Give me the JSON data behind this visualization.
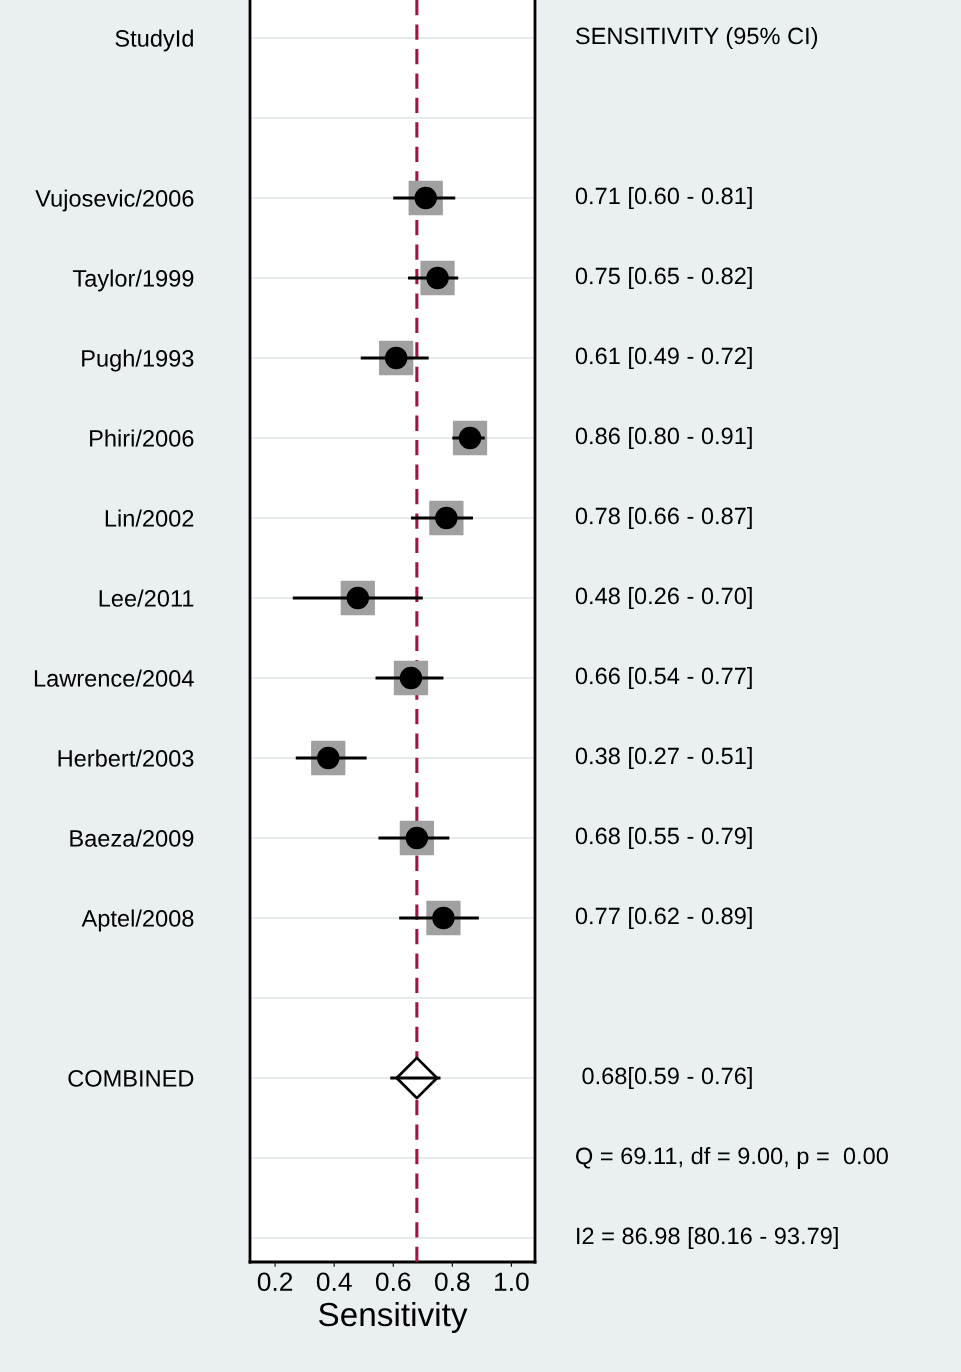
{
  "chart_data": {
    "type": "scatter",
    "orientation": "horizontal",
    "xlabel": "Sensitivity",
    "categories": [
      "StudyId",
      null,
      "Vujosevic/2006",
      "Taylor/1999",
      "Pugh/1993",
      "Phiri/2006",
      "Lin/2002",
      "Lee/2011",
      "Lawrence/2004",
      "Herbert/2003",
      "Baeza/2009",
      "Aptel/2008",
      null,
      "COMBINED",
      null,
      null
    ],
    "series": [
      {
        "color": "#000000",
        "marker": "circle",
        "values": [
          null,
          null,
          0.71,
          0.75,
          0.61,
          0.86,
          0.78,
          0.48,
          0.66,
          0.38,
          0.68,
          0.77,
          null,
          null,
          null,
          null
        ],
        "errors": [
          null,
          null,
          [
            0.6,
            0.81
          ],
          [
            0.65,
            0.82
          ],
          [
            0.49,
            0.72
          ],
          [
            0.8,
            0.91
          ],
          [
            0.66,
            0.87
          ],
          [
            0.26,
            0.7
          ],
          [
            0.54,
            0.77
          ],
          [
            0.27,
            0.51
          ],
          [
            0.55,
            0.79
          ],
          [
            0.62,
            0.89
          ],
          null,
          null,
          null,
          null
        ],
        "value_labels": [
          "SENSITIVITY (95% CI)",
          null,
          "0.71 [0.60 - 0.81]",
          "0.75 [0.65 - 0.82]",
          "0.61 [0.49 - 0.72]",
          "0.86 [0.80 - 0.91]",
          "0.78 [0.66 - 0.87]",
          "0.48 [0.26 - 0.70]",
          "0.66 [0.54 - 0.77]",
          "0.38 [0.27 - 0.51]",
          "0.68 [0.55 - 0.79]",
          "0.77 [0.62 - 0.89]",
          null,
          " 0.68[0.59 - 0.76]",
          "Q = 69.11, df = 9.00, p =  0.00",
          "I2 = 86.98 [80.16 - 93.79]"
        ]
      },
      {
        "color": "#000000",
        "marker": "diamond",
        "values": [
          null,
          null,
          null,
          null,
          null,
          null,
          null,
          null,
          null,
          null,
          null,
          null,
          null,
          0.68,
          null,
          null
        ],
        "errors": [
          null,
          null,
          null,
          null,
          null,
          null,
          null,
          null,
          null,
          null,
          null,
          null,
          null,
          [
            0.59,
            0.76
          ],
          null,
          null
        ]
      }
    ],
    "xlim": [
      0.115,
      1.08
    ],
    "xticks": [
      0.2,
      0.4,
      0.6,
      0.8,
      {
        "value": 1.0,
        "label": "1.0"
      }
    ],
    "ref_lines": [
      {
        "axis": "x",
        "value": 0.68,
        "color": "#a0153e",
        "line_style": "dashed"
      }
    ],
    "grid": "y"
  }
}
